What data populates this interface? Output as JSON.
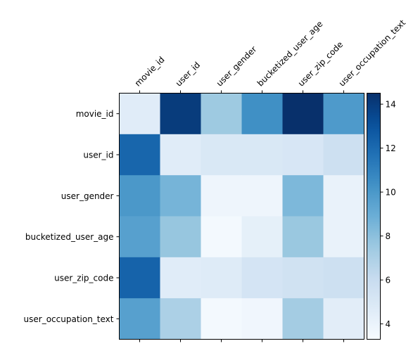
{
  "chart_data": {
    "type": "heatmap",
    "title": "",
    "xlabel": "",
    "ylabel": "",
    "x_categories": [
      "movie_id",
      "user_id",
      "user_gender",
      "bucketized_user_age",
      "user_zip_code",
      "user_occupation_text"
    ],
    "y_categories": [
      "movie_id",
      "user_id",
      "user_gender",
      "bucketized_user_age",
      "user_zip_code",
      "user_occupation_text"
    ],
    "values": [
      [
        4.6,
        14.0,
        7.5,
        10.4,
        14.5,
        9.9
      ],
      [
        12.2,
        4.6,
        5.0,
        5.0,
        5.1,
        5.7
      ],
      [
        10.0,
        8.6,
        3.8,
        3.8,
        8.4,
        4.1
      ],
      [
        9.6,
        7.7,
        3.5,
        4.3,
        7.6,
        4.1
      ],
      [
        12.3,
        4.6,
        4.7,
        5.3,
        5.5,
        5.7
      ],
      [
        9.6,
        7.0,
        3.5,
        3.7,
        7.3,
        4.5
      ]
    ],
    "colormap": "Blues",
    "colorbar": {
      "vmin": 3.3,
      "vmax": 14.5,
      "ticks": [
        "4",
        "6",
        "8",
        "10",
        "12",
        "14"
      ]
    },
    "grid": false,
    "legend": "colorbar-right"
  }
}
